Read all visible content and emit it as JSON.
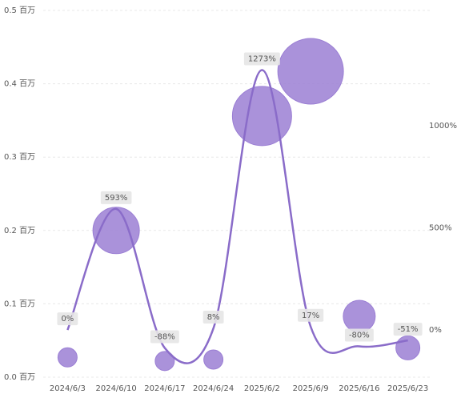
{
  "chart_data": {
    "type": "bubble-line",
    "categories": [
      "2024/6/3",
      "2024/6/10",
      "2024/6/17",
      "2024/6/24",
      "2025/6/2",
      "2025/6/9",
      "2025/6/16",
      "2025/6/23"
    ],
    "bubbles": {
      "color": "#9b7fd4",
      "values": [
        0.027,
        0.2,
        0.022,
        0.024,
        0.356,
        0.417,
        0.083,
        0.04
      ],
      "sizes": [
        144,
        841,
        144,
        144,
        1369,
        1681,
        400,
        225
      ]
    },
    "line": {
      "color": "#8a6cc9",
      "axis": "y2",
      "values": [
        0,
        593,
        -88,
        8,
        1273,
        17,
        -80,
        -51
      ],
      "value_labels": [
        "0%",
        "593%",
        "-88%",
        "8%",
        "1273%",
        "17%",
        "-80%",
        "-51%"
      ]
    },
    "ylim": [
      0,
      0.5
    ],
    "yticks": [
      {
        "value": 0,
        "label": "0.0 百万"
      },
      {
        "value": 0.1,
        "label": "0.1 百万"
      },
      {
        "value": 0.2,
        "label": "0.2 百万"
      },
      {
        "value": 0.3,
        "label": "0.3 百万"
      },
      {
        "value": 0.4,
        "label": "0.4 百万"
      },
      {
        "value": 0.5,
        "label": "0.5 百万"
      }
    ],
    "y2lim": [
      -231,
      1565
    ],
    "y2ticks": [
      {
        "value": 0,
        "label": "0%"
      },
      {
        "value": 500,
        "label": "500%"
      },
      {
        "value": 1000,
        "label": "1000%"
      }
    ],
    "grid": true
  }
}
